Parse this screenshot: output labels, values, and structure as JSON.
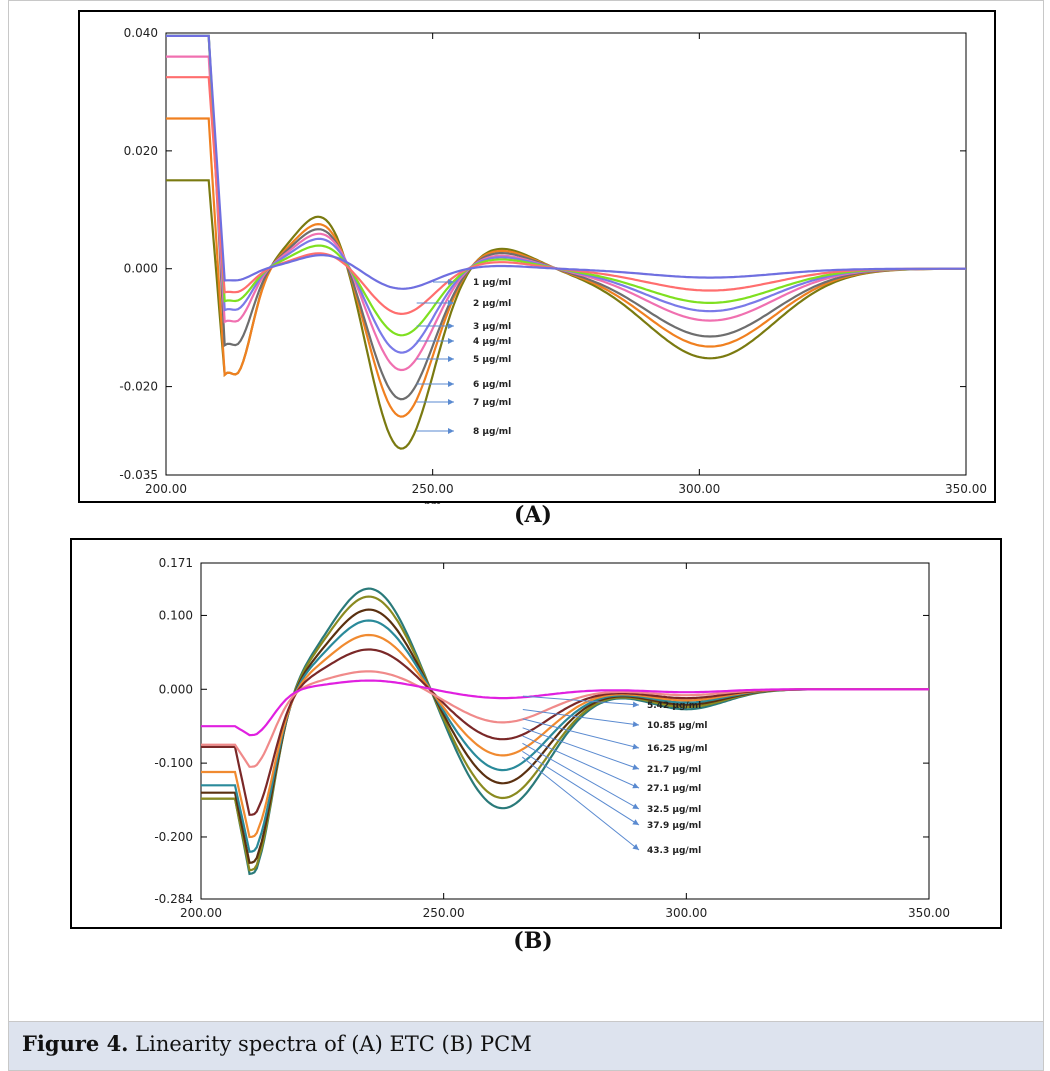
{
  "figure": {
    "caption_bold": "Figure 4.",
    "caption_text": " Linearity spectra of (A) ETC (B) PCM",
    "panel_a_label": "(A)",
    "panel_b_label": "(B)"
  },
  "chart_data": [
    {
      "type": "line",
      "panel": "A",
      "xlabel": "nm",
      "xlim": [
        200,
        350
      ],
      "ylim": [
        -0.035,
        0.04
      ],
      "x_ticks": [
        "200.00",
        "250.00",
        "300.00",
        "350.00"
      ],
      "y_ticks": [
        {
          "value": 0.04,
          "label": "0.040"
        },
        {
          "value": 0.02,
          "label": "0.020"
        },
        {
          "value": 0.0,
          "label": "0.000"
        },
        {
          "value": -0.02,
          "label": "-0.020"
        },
        {
          "value": -0.035,
          "label": "-0.035"
        }
      ],
      "legend_placement": "inline-right-of-center",
      "series": [
        {
          "name": "1 µg/ml",
          "color": "#6f6fe0",
          "plateau": 0.0395,
          "trough_min": -0.002,
          "peak": 0.0025,
          "trough1": -0.0035,
          "peak2": 0.0005,
          "trough2": -0.0015
        },
        {
          "name": "2 µg/ml",
          "color": "#ff6e6e",
          "plateau": 0.0325,
          "trough_min": -0.004,
          "peak": 0.003,
          "trough1": -0.0078,
          "peak2": 0.0012,
          "trough2": -0.0037
        },
        {
          "name": "3 µg/ml",
          "color": "#7fe020",
          "plateau": 0.0395,
          "trough_min": -0.0055,
          "peak": 0.0045,
          "trough1": -0.0115,
          "peak2": 0.0017,
          "trough2": -0.0058
        },
        {
          "name": "4 µg/ml",
          "color": "#7a7ae8",
          "plateau": 0.0395,
          "trough_min": -0.007,
          "peak": 0.0058,
          "trough1": -0.0145,
          "peak2": 0.0021,
          "trough2": -0.0072
        },
        {
          "name": "5 µg/ml",
          "color": "#f070b0",
          "plateau": 0.036,
          "trough_min": -0.009,
          "peak": 0.0068,
          "trough1": -0.0175,
          "peak2": 0.0024,
          "trough2": -0.0088
        },
        {
          "name": "6 µg/ml",
          "color": "#6e6e6e",
          "plateau": 0.0395,
          "trough_min": -0.013,
          "peak": 0.0078,
          "trough1": -0.0225,
          "peak2": 0.0029,
          "trough2": -0.0115
        },
        {
          "name": "7 µg/ml",
          "color": "#f08020",
          "plateau": 0.0255,
          "trough_min": -0.018,
          "peak": 0.0088,
          "trough1": -0.0255,
          "peak2": 0.0033,
          "trough2": -0.0132
        },
        {
          "name": "8 µg/ml",
          "color": "#7a7a10",
          "plateau": 0.015,
          "trough_min": -0.018,
          "peak": 0.0103,
          "trough1": -0.031,
          "peak2": 0.0037,
          "trough2": -0.0152
        }
      ]
    },
    {
      "type": "line",
      "panel": "B",
      "xlabel": "",
      "xlim": [
        200,
        350
      ],
      "ylim": [
        -0.284,
        0.171
      ],
      "x_ticks": [
        "200.00",
        "250.00",
        "300.00",
        "350.00"
      ],
      "y_ticks": [
        {
          "value": 0.171,
          "label": "0.171"
        },
        {
          "value": 0.1,
          "label": "0.100"
        },
        {
          "value": 0.0,
          "label": "0.000"
        },
        {
          "value": -0.1,
          "label": "-0.100"
        },
        {
          "value": -0.2,
          "label": "-0.200"
        },
        {
          "value": -0.284,
          "label": "-0.284"
        }
      ],
      "legend_placement": "inline-right-of-center",
      "series": [
        {
          "name": "5.42 µg/ml",
          "color": "#e020e0",
          "plateau": -0.05,
          "trough_min": -0.062,
          "peak": 0.012,
          "trough1": -0.012,
          "trough2": -0.004
        },
        {
          "name": "10.85 µg/ml",
          "color": "#f08a8a",
          "plateau": -0.075,
          "trough_min": -0.105,
          "peak": 0.025,
          "trough1": -0.045,
          "trough2": -0.008
        },
        {
          "name": "16.25 µg/ml",
          "color": "#7a2828",
          "plateau": -0.078,
          "trough_min": -0.17,
          "peak": 0.055,
          "trough1": -0.068,
          "trough2": -0.012
        },
        {
          "name": "21.7 µg/ml",
          "color": "#f08a30",
          "plateau": -0.112,
          "trough_min": -0.2,
          "peak": 0.075,
          "trough1": -0.09,
          "trough2": -0.015
        },
        {
          "name": "27.1 µg/ml",
          "color": "#2a8a9a",
          "plateau": -0.13,
          "trough_min": -0.22,
          "peak": 0.095,
          "trough1": -0.11,
          "trough2": -0.018
        },
        {
          "name": "32.5 µg/ml",
          "color": "#5a3010",
          "plateau": -0.14,
          "trough_min": -0.235,
          "peak": 0.11,
          "trough1": -0.128,
          "trough2": -0.021
        },
        {
          "name": "37.9 µg/ml",
          "color": "#8a8a20",
          "plateau": -0.148,
          "trough_min": -0.245,
          "peak": 0.128,
          "trough1": -0.148,
          "trough2": -0.024
        },
        {
          "name": "43.3 µg/ml",
          "color": "#2a7a7a",
          "plateau": -0.148,
          "trough_min": -0.25,
          "peak": 0.139,
          "trough1": -0.162,
          "trough2": -0.027
        }
      ]
    }
  ]
}
